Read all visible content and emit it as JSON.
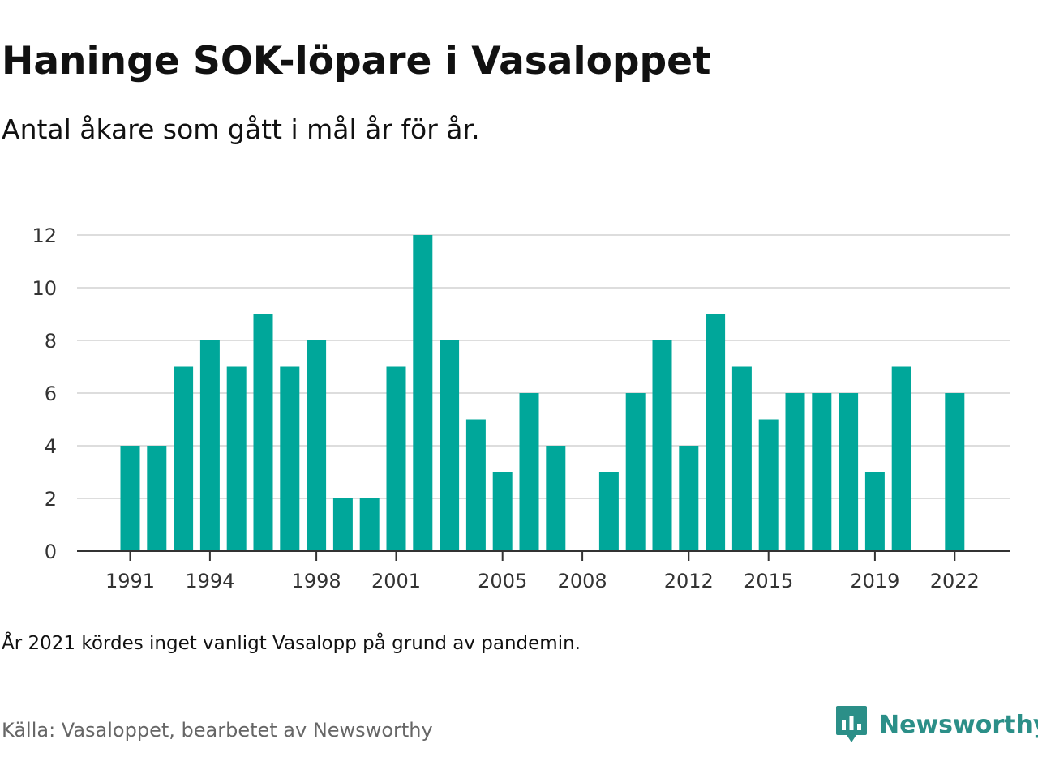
{
  "header": {
    "title": "Haninge SOK-löpare i Vasaloppet",
    "subtitle": "Antal åkare som gått i mål år för år."
  },
  "footer": {
    "note": "År 2021 kördes inget vanligt Vasalopp på grund av pandemin.",
    "source": "Källa: Vasaloppet, bearbetet av Newsworthy",
    "brand": "Newsworthy",
    "brand_icon": "newsworthy-logo-icon"
  },
  "colors": {
    "bar": "#00a79a",
    "grid": "#dddddd",
    "axis": "#333333",
    "brand": "#2b8f88"
  },
  "chart_data": {
    "type": "bar",
    "title": "Haninge SOK-löpare i Vasaloppet",
    "subtitle": "Antal åkare som gått i mål år för år.",
    "xlabel": "",
    "ylabel": "",
    "categories": [
      1991,
      1992,
      1993,
      1994,
      1995,
      1996,
      1997,
      1998,
      1999,
      2000,
      2001,
      2002,
      2003,
      2004,
      2005,
      2006,
      2007,
      2008,
      2009,
      2010,
      2011,
      2012,
      2013,
      2014,
      2015,
      2016,
      2017,
      2018,
      2019,
      2020,
      2021,
      2022
    ],
    "values": [
      4,
      4,
      7,
      8,
      7,
      9,
      7,
      8,
      2,
      2,
      7,
      12,
      8,
      5,
      3,
      6,
      4,
      null,
      3,
      6,
      8,
      4,
      9,
      7,
      5,
      6,
      6,
      6,
      3,
      7,
      null,
      6
    ],
    "x_tick_labels": [
      1991,
      1994,
      1998,
      2001,
      2005,
      2008,
      2012,
      2015,
      2019,
      2022
    ],
    "y_ticks": [
      0,
      2,
      4,
      6,
      8,
      10,
      12
    ],
    "ylim": [
      0,
      12
    ],
    "grid": "horizontal",
    "legend": "none"
  }
}
